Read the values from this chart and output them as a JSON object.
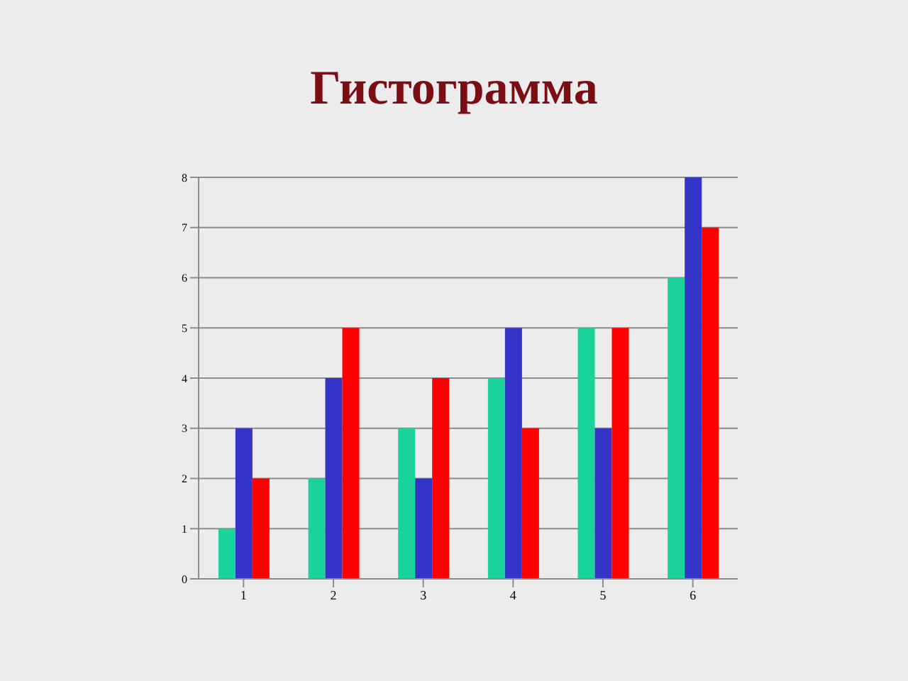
{
  "chart_data": {
    "type": "bar",
    "title": "Гистограмма",
    "categories": [
      "1",
      "2",
      "3",
      "4",
      "5",
      "6"
    ],
    "series": [
      {
        "color": "#19d39b",
        "values": [
          1,
          2,
          3,
          4,
          5,
          6
        ]
      },
      {
        "color": "#3434c8",
        "values": [
          3,
          4,
          2,
          5,
          3,
          8
        ]
      },
      {
        "color": "#ff0000",
        "values": [
          2,
          5,
          4,
          3,
          5,
          7
        ]
      }
    ],
    "ylim": [
      0,
      8
    ],
    "yticks": [
      0,
      1,
      2,
      3,
      4,
      5,
      6,
      7,
      8
    ],
    "grid": "y"
  }
}
